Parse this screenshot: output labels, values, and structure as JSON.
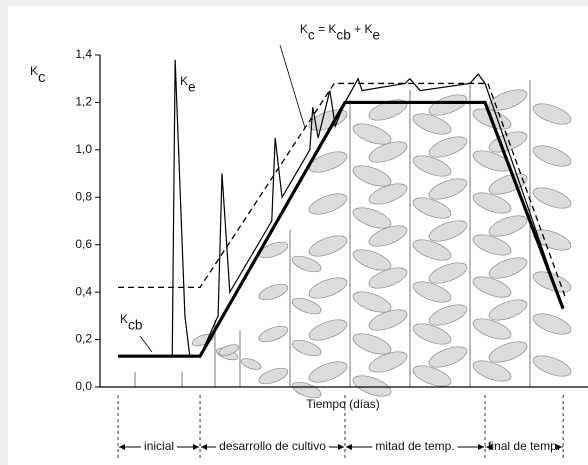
{
  "chart_data": {
    "type": "line",
    "y_label": [
      "K",
      "c"
    ],
    "equation": [
      "K",
      "c",
      " = K",
      "cb",
      " + K",
      "e"
    ],
    "ke_label": [
      "K",
      "e"
    ],
    "kcb_label": [
      "K",
      "cb"
    ],
    "x_label": "Tiempo (días)",
    "xlim": [
      0,
      100
    ],
    "ylim": [
      0,
      1.4
    ],
    "yticks": [
      {
        "value": 0,
        "label": "0,0"
      },
      {
        "value": 0.2,
        "label": "0,2"
      },
      {
        "value": 0.4,
        "label": "0,4"
      },
      {
        "value": 0.6,
        "label": "0,6"
      },
      {
        "value": 0.8,
        "label": "0,8"
      },
      {
        "value": 1.0,
        "label": "1,0"
      },
      {
        "value": 1.2,
        "label": "1,2"
      },
      {
        "value": 1.4,
        "label": "1,4"
      }
    ],
    "series": [
      {
        "color": "#000000",
        "style": "thin",
        "x": [
          3.7,
          14.8,
          15.4,
          17.4,
          18.4,
          20.5,
          24.2,
          25.0,
          26.6,
          35.2,
          35.9,
          37.3,
          43.0,
          43.6,
          44.7,
          47.1,
          48.2,
          50.2,
          52.9,
          53.7,
          62.5,
          63.5,
          65.6,
          75.8,
          77.5,
          78.9,
          94.9
        ],
        "values": [
          0.13,
          0.13,
          1.38,
          0.3,
          0.13,
          0.13,
          0.3,
          0.9,
          0.4,
          0.7,
          1.05,
          0.8,
          1.0,
          1.18,
          1.05,
          1.25,
          1.1,
          1.2,
          1.3,
          1.25,
          1.28,
          1.3,
          1.25,
          1.28,
          1.32,
          1.28,
          0.33
        ]
      },
      {
        "color": "#000000",
        "style": "dashed",
        "x": [
          3.7,
          20.5,
          48.0,
          79.5,
          95.5
        ],
        "values": [
          0.42,
          0.42,
          1.28,
          1.28,
          0.37
        ]
      },
      {
        "color": "#000000",
        "style": "thick",
        "x": [
          3.7,
          20.5,
          50.2,
          78.9,
          94.9
        ],
        "values": [
          0.13,
          0.13,
          1.2,
          1.2,
          0.33
        ]
      }
    ],
    "stages": [
      {
        "label": "inicial",
        "start": 3.7,
        "end": 20.5
      },
      {
        "label": "desarrollo de cultivo",
        "start": 20.5,
        "end": 50.2
      },
      {
        "label": "mitad de temp.",
        "start": 50.2,
        "end": 78.9
      },
      {
        "label": "final de temp.",
        "start": 78.9,
        "end": 94.9
      }
    ]
  }
}
